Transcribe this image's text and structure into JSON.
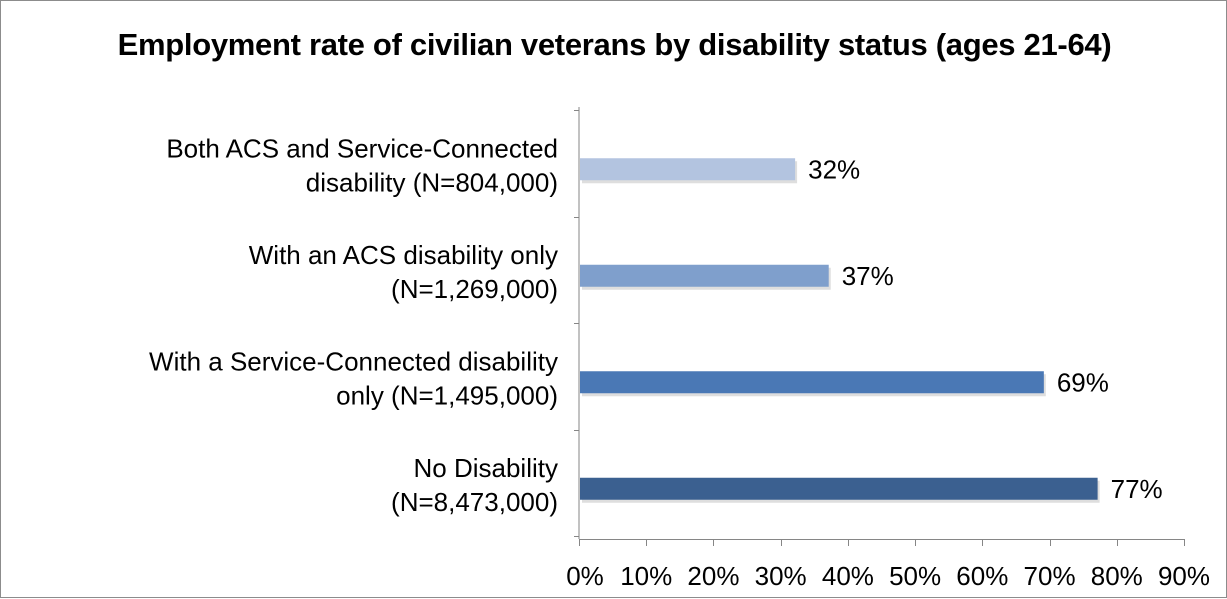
{
  "chart_data": {
    "type": "bar",
    "orientation": "horizontal",
    "title": "Employment rate of civilian veterans by disability status (ages 21-64)",
    "xlabel": "",
    "ylabel": "",
    "categories": [
      [
        "Both ACS and Service-Connected",
        "disability (N=804,000)"
      ],
      [
        "With an ACS disability only",
        "(N=1,269,000)"
      ],
      [
        "With a Service-Connected disability",
        "only (N=1,495,000)"
      ],
      [
        "No Disability",
        "(N=8,473,000)"
      ]
    ],
    "values": [
      32,
      37,
      69,
      77
    ],
    "data_labels": [
      "32%",
      "37%",
      "69%",
      "77%"
    ],
    "colors": [
      "#b3c4e0",
      "#7f9fcc",
      "#4a78b5",
      "#3b6090"
    ],
    "xlim": [
      0,
      90
    ],
    "xticks": [
      0,
      10,
      20,
      30,
      40,
      50,
      60,
      70,
      80,
      90
    ],
    "xtick_labels": [
      "0%",
      "10%",
      "20%",
      "30%",
      "40%",
      "50%",
      "60%",
      "70%",
      "80%",
      "90%"
    ],
    "grid": false,
    "legend": "none"
  }
}
